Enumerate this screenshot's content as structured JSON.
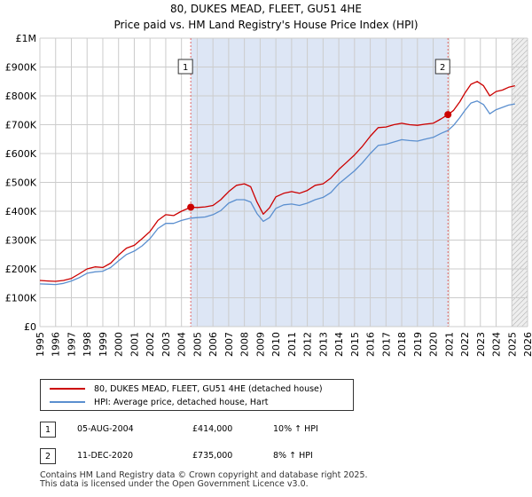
{
  "header": {
    "title": "80, DUKES MEAD, FLEET, GU51 4HE",
    "subtitle": "Price paid vs. HM Land Registry's House Price Index (HPI)"
  },
  "legend": {
    "items": [
      {
        "label": "80, DUKES MEAD, FLEET, GU51 4HE (detached house)",
        "color": "#cc0000"
      },
      {
        "label": "HPI: Average price, detached house, Hart",
        "color": "#5b8fcf"
      }
    ]
  },
  "transactions": [
    {
      "badge": "1",
      "date": "05-AUG-2004",
      "price": "£414,000",
      "hpi": "10% ↑ HPI"
    },
    {
      "badge": "2",
      "date": "11-DEC-2020",
      "price": "£735,000",
      "hpi": "8% ↑ HPI"
    }
  ],
  "footer": {
    "line1": "Contains HM Land Registry data © Crown copyright and database right 2025.",
    "line2": "This data is licensed under the Open Government Licence v3.0."
  },
  "chart_data": {
    "type": "line",
    "title": "80, DUKES MEAD, FLEET, GU51 4HE",
    "subtitle": "Price paid vs. HM Land Registry's House Price Index (HPI)",
    "xlim": [
      1995,
      2026
    ],
    "ylim": [
      0,
      1000000
    ],
    "yticks": [
      {
        "value": 0,
        "label": "£0"
      },
      {
        "value": 100000,
        "label": "£100K"
      },
      {
        "value": 200000,
        "label": "£200K"
      },
      {
        "value": 300000,
        "label": "£300K"
      },
      {
        "value": 400000,
        "label": "£400K"
      },
      {
        "value": 500000,
        "label": "£500K"
      },
      {
        "value": 600000,
        "label": "£600K"
      },
      {
        "value": 700000,
        "label": "£700K"
      },
      {
        "value": 800000,
        "label": "£800K"
      },
      {
        "value": 900000,
        "label": "£900K"
      },
      {
        "value": 1000000,
        "label": "£1M"
      }
    ],
    "xticks": [
      1995,
      1996,
      1997,
      1998,
      1999,
      2000,
      2001,
      2002,
      2003,
      2004,
      2005,
      2006,
      2007,
      2008,
      2009,
      2010,
      2011,
      2012,
      2013,
      2014,
      2015,
      2016,
      2017,
      2018,
      2019,
      2020,
      2021,
      2022,
      2023,
      2024,
      2025,
      2026
    ],
    "grid": true,
    "shaded_periods": [
      {
        "from": 2004.59,
        "to": 2020.94,
        "color": "#dde6f5"
      },
      {
        "from": 2025.0,
        "to": 2026,
        "color": "#eeeeee",
        "hatched": true
      }
    ],
    "markers": [
      {
        "label": "1",
        "x": 2004.59,
        "y": 414000
      },
      {
        "label": "2",
        "x": 2020.94,
        "y": 735000
      }
    ],
    "series": [
      {
        "name": "80, DUKES MEAD, FLEET, GU51 4HE (detached house)",
        "color": "#cc0000",
        "points": [
          [
            1995.0,
            160000
          ],
          [
            1995.5,
            158000
          ],
          [
            1996.0,
            157000
          ],
          [
            1996.5,
            160000
          ],
          [
            1997.0,
            167000
          ],
          [
            1997.5,
            183000
          ],
          [
            1998.0,
            200000
          ],
          [
            1998.5,
            207000
          ],
          [
            1999.0,
            205000
          ],
          [
            1999.5,
            220000
          ],
          [
            2000.0,
            248000
          ],
          [
            2000.5,
            272000
          ],
          [
            2001.0,
            282000
          ],
          [
            2001.5,
            305000
          ],
          [
            2002.0,
            330000
          ],
          [
            2002.5,
            368000
          ],
          [
            2003.0,
            388000
          ],
          [
            2003.5,
            385000
          ],
          [
            2004.0,
            400000
          ],
          [
            2004.59,
            414000
          ],
          [
            2005.0,
            413000
          ],
          [
            2005.5,
            415000
          ],
          [
            2006.0,
            420000
          ],
          [
            2006.5,
            440000
          ],
          [
            2007.0,
            468000
          ],
          [
            2007.5,
            490000
          ],
          [
            2008.0,
            495000
          ],
          [
            2008.4,
            485000
          ],
          [
            2008.8,
            432000
          ],
          [
            2009.2,
            390000
          ],
          [
            2009.6,
            412000
          ],
          [
            2010.0,
            450000
          ],
          [
            2010.5,
            462000
          ],
          [
            2011.0,
            468000
          ],
          [
            2011.5,
            462000
          ],
          [
            2012.0,
            472000
          ],
          [
            2012.5,
            490000
          ],
          [
            2013.0,
            495000
          ],
          [
            2013.5,
            515000
          ],
          [
            2014.0,
            545000
          ],
          [
            2014.5,
            570000
          ],
          [
            2015.0,
            595000
          ],
          [
            2015.5,
            625000
          ],
          [
            2016.0,
            660000
          ],
          [
            2016.5,
            690000
          ],
          [
            2017.0,
            692000
          ],
          [
            2017.5,
            700000
          ],
          [
            2018.0,
            705000
          ],
          [
            2018.5,
            700000
          ],
          [
            2019.0,
            698000
          ],
          [
            2019.5,
            702000
          ],
          [
            2020.0,
            705000
          ],
          [
            2020.5,
            720000
          ],
          [
            2020.94,
            735000
          ],
          [
            2021.3,
            750000
          ],
          [
            2021.7,
            780000
          ],
          [
            2022.0,
            808000
          ],
          [
            2022.4,
            840000
          ],
          [
            2022.8,
            850000
          ],
          [
            2023.2,
            835000
          ],
          [
            2023.6,
            800000
          ],
          [
            2024.0,
            815000
          ],
          [
            2024.4,
            820000
          ],
          [
            2024.8,
            830000
          ],
          [
            2025.2,
            835000
          ]
        ]
      },
      {
        "name": "HPI: Average price, detached house, Hart",
        "color": "#5b8fcf",
        "points": [
          [
            1995.0,
            148000
          ],
          [
            1995.5,
            147000
          ],
          [
            1996.0,
            146000
          ],
          [
            1996.5,
            150000
          ],
          [
            1997.0,
            158000
          ],
          [
            1997.5,
            170000
          ],
          [
            1998.0,
            185000
          ],
          [
            1998.5,
            190000
          ],
          [
            1999.0,
            192000
          ],
          [
            1999.5,
            205000
          ],
          [
            2000.0,
            228000
          ],
          [
            2000.5,
            250000
          ],
          [
            2001.0,
            262000
          ],
          [
            2001.5,
            280000
          ],
          [
            2002.0,
            305000
          ],
          [
            2002.5,
            340000
          ],
          [
            2003.0,
            358000
          ],
          [
            2003.5,
            358000
          ],
          [
            2004.0,
            368000
          ],
          [
            2004.59,
            376000
          ],
          [
            2005.0,
            378000
          ],
          [
            2005.5,
            380000
          ],
          [
            2006.0,
            388000
          ],
          [
            2006.5,
            402000
          ],
          [
            2007.0,
            428000
          ],
          [
            2007.5,
            440000
          ],
          [
            2008.0,
            440000
          ],
          [
            2008.4,
            432000
          ],
          [
            2008.8,
            392000
          ],
          [
            2009.2,
            365000
          ],
          [
            2009.6,
            378000
          ],
          [
            2010.0,
            410000
          ],
          [
            2010.5,
            422000
          ],
          [
            2011.0,
            425000
          ],
          [
            2011.5,
            420000
          ],
          [
            2012.0,
            428000
          ],
          [
            2012.5,
            440000
          ],
          [
            2013.0,
            448000
          ],
          [
            2013.5,
            465000
          ],
          [
            2014.0,
            495000
          ],
          [
            2014.5,
            518000
          ],
          [
            2015.0,
            540000
          ],
          [
            2015.5,
            568000
          ],
          [
            2016.0,
            600000
          ],
          [
            2016.5,
            628000
          ],
          [
            2017.0,
            632000
          ],
          [
            2017.5,
            640000
          ],
          [
            2018.0,
            648000
          ],
          [
            2018.5,
            645000
          ],
          [
            2019.0,
            643000
          ],
          [
            2019.5,
            650000
          ],
          [
            2020.0,
            656000
          ],
          [
            2020.5,
            670000
          ],
          [
            2020.94,
            680000
          ],
          [
            2021.3,
            698000
          ],
          [
            2021.7,
            725000
          ],
          [
            2022.0,
            748000
          ],
          [
            2022.4,
            775000
          ],
          [
            2022.8,
            782000
          ],
          [
            2023.2,
            770000
          ],
          [
            2023.6,
            738000
          ],
          [
            2024.0,
            752000
          ],
          [
            2024.4,
            760000
          ],
          [
            2024.8,
            768000
          ],
          [
            2025.2,
            772000
          ]
        ]
      }
    ]
  }
}
